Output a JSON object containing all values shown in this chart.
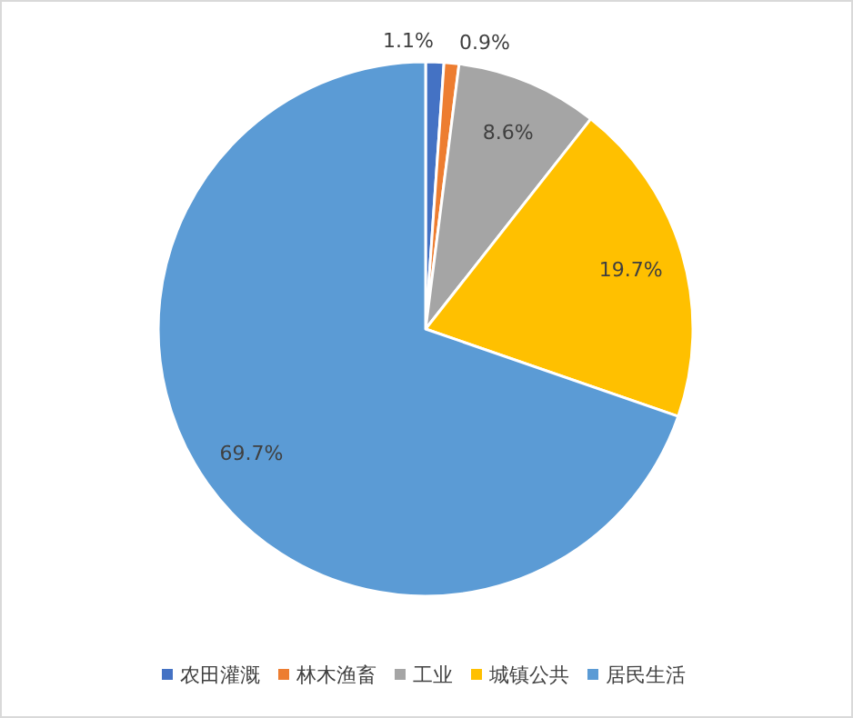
{
  "chart_data": {
    "type": "pie",
    "categories": [
      "农田灌溉",
      "林木渔畜",
      "工业",
      "城镇公共",
      "居民生活"
    ],
    "values": [
      1.1,
      0.9,
      8.6,
      19.7,
      69.7
    ],
    "value_labels": [
      "1.1%",
      "0.9%",
      "8.6%",
      "19.7%",
      "69.7%"
    ],
    "colors": [
      "#4472c4",
      "#ed7d31",
      "#a5a5a5",
      "#ffc000",
      "#5b9bd5"
    ],
    "legend": "bottom"
  }
}
